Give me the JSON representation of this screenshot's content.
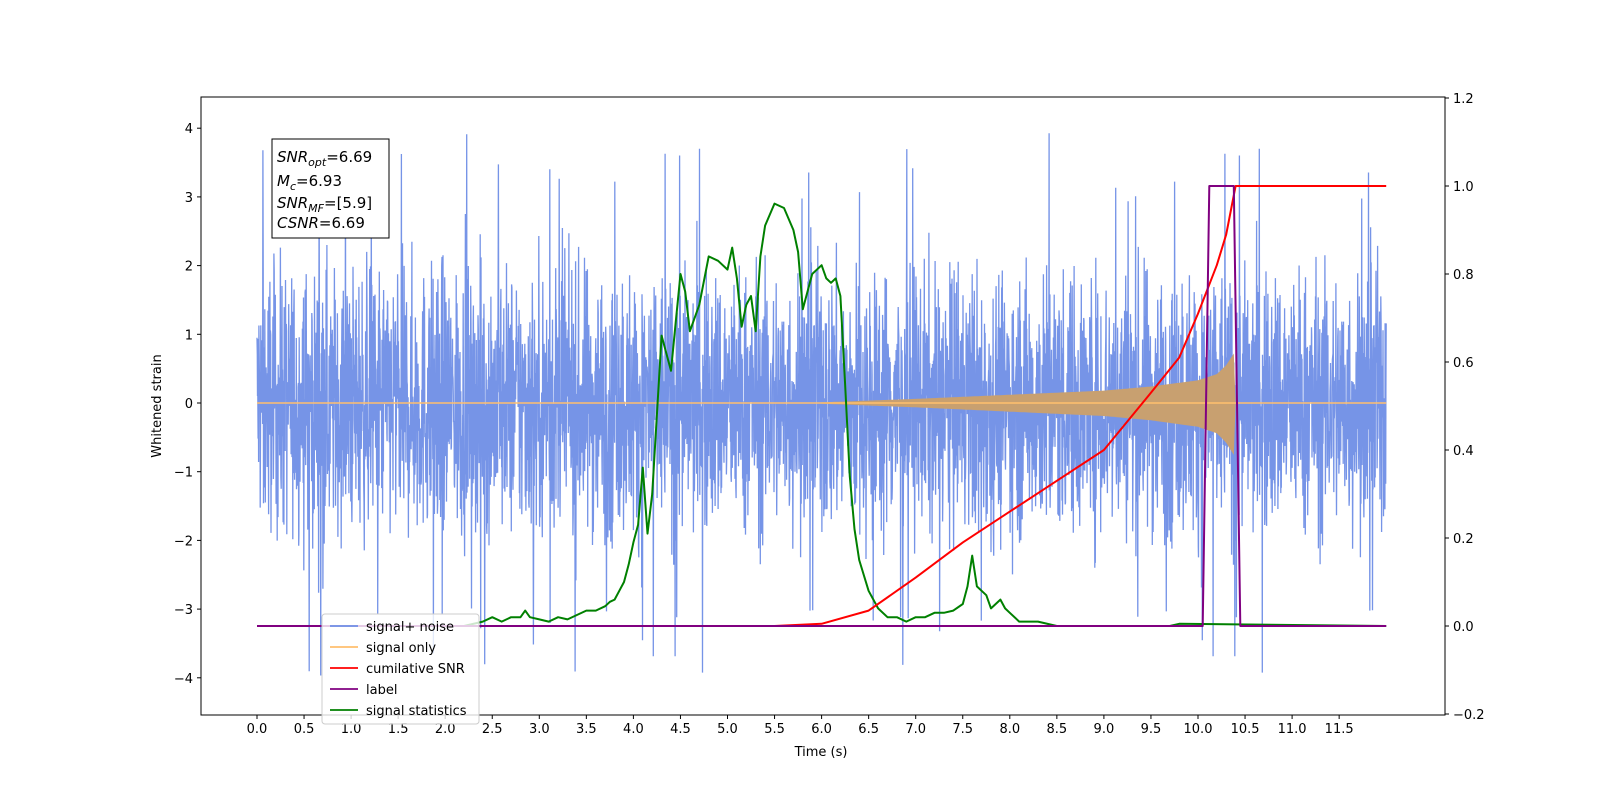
{
  "chart_data": {
    "type": "line",
    "xlabel": "Time (s)",
    "ylabel": "Whitened strain",
    "xlim": [
      -0.6,
      12.65
    ],
    "ylim": [
      -4.5,
      4.5
    ],
    "y2lim": [
      -0.2,
      1.2
    ],
    "grid": false,
    "legend_position": "lower-left",
    "x_ticks": [
      "0.0",
      "0.5",
      "1.0",
      "1.5",
      "2.0",
      "2.5",
      "3.0",
      "3.5",
      "4.0",
      "4.5",
      "5.0",
      "5.5",
      "6.0",
      "6.5",
      "7.0",
      "7.5",
      "8.0",
      "8.5",
      "9.0",
      "9.5",
      "10.0",
      "10.5",
      "11.0",
      "11.5"
    ],
    "y_ticks": [
      "4",
      "3",
      "2",
      "1",
      "0",
      "−1",
      "−2",
      "−3",
      "−4"
    ],
    "y2_ticks": [
      "1.2",
      "1.0",
      "0.8",
      "0.6",
      "0.4",
      "0.2",
      "0.0",
      "−0.2"
    ],
    "annotation": {
      "lines": [
        {
          "base": "SNR",
          "sub": "opt",
          "value": "=6.69"
        },
        {
          "base": "M",
          "sub": "c",
          "value": "=6.93"
        },
        {
          "base": "SNR",
          "sub": "MF",
          "value": "=[5.9]"
        },
        {
          "base": "CSNR",
          "sub": "",
          "value": "=6.69"
        }
      ]
    },
    "legend": [
      {
        "label": "signal+ noise",
        "color": "#6f8ee6"
      },
      {
        "label": "signal only",
        "color": "#ffbf6e"
      },
      {
        "label": "cumilative SNR",
        "color": "#ff0000"
      },
      {
        "label": "label",
        "color": "#800080"
      },
      {
        "label": "signal statistics",
        "color": "#008000"
      }
    ],
    "series": [
      {
        "name": "signal+ noise",
        "axis": "left",
        "color": "#6f8ee6",
        "time_range": [
          0.0,
          12.0
        ],
        "approx_amplitude": 1.6,
        "approx_peak": 4.0
      },
      {
        "name": "signal only",
        "axis": "left",
        "color": "#c8a070",
        "t_merger": 10.4,
        "envelope": {
          "t": [
            6.0,
            7.0,
            8.0,
            9.0,
            9.5,
            10.0,
            10.2,
            10.3,
            10.38
          ],
          "amp": [
            0.01,
            0.06,
            0.12,
            0.18,
            0.24,
            0.33,
            0.42,
            0.55,
            0.72
          ]
        }
      },
      {
        "name": "cumilative SNR",
        "axis": "right",
        "color": "#ff0000",
        "x": [
          0,
          5.5,
          6.0,
          6.5,
          7.0,
          7.5,
          8.0,
          8.5,
          9.0,
          9.5,
          9.8,
          10.0,
          10.2,
          10.3,
          10.4,
          12.0
        ],
        "y": [
          0,
          0.0,
          0.005,
          0.035,
          0.11,
          0.19,
          0.26,
          0.33,
          0.4,
          0.53,
          0.61,
          0.71,
          0.82,
          0.89,
          1.0,
          1.0
        ]
      },
      {
        "name": "label",
        "axis": "right",
        "color": "#800080",
        "x": [
          0,
          10.05,
          10.12,
          10.38,
          10.45,
          12.0
        ],
        "y": [
          0,
          0,
          1,
          1,
          0,
          0
        ]
      },
      {
        "name": "signal statistics",
        "axis": "right",
        "color": "#008000",
        "x": [
          0,
          2.2,
          2.4,
          2.5,
          2.6,
          2.7,
          2.8,
          2.85,
          2.9,
          3.0,
          3.1,
          3.2,
          3.3,
          3.4,
          3.5,
          3.6,
          3.7,
          3.75,
          3.8,
          3.85,
          3.9,
          3.95,
          4.0,
          4.05,
          4.1,
          4.15,
          4.2,
          4.3,
          4.4,
          4.45,
          4.5,
          4.55,
          4.6,
          4.7,
          4.8,
          4.9,
          5.0,
          5.05,
          5.1,
          5.15,
          5.2,
          5.25,
          5.3,
          5.35,
          5.4,
          5.5,
          5.6,
          5.7,
          5.75,
          5.8,
          5.9,
          6.0,
          6.05,
          6.1,
          6.15,
          6.2,
          6.25,
          6.3,
          6.35,
          6.4,
          6.5,
          6.6,
          6.7,
          6.8,
          6.9,
          7.0,
          7.1,
          7.2,
          7.3,
          7.4,
          7.5,
          7.55,
          7.6,
          7.65,
          7.7,
          7.75,
          7.8,
          7.85,
          7.9,
          7.95,
          8.0,
          8.1,
          8.2,
          8.3,
          8.5,
          9.0,
          9.7,
          9.8,
          12.0
        ],
        "y": [
          0,
          0,
          0.01,
          0.02,
          0.01,
          0.02,
          0.02,
          0.035,
          0.02,
          0.015,
          0.01,
          0.02,
          0.015,
          0.025,
          0.035,
          0.035,
          0.045,
          0.055,
          0.06,
          0.08,
          0.1,
          0.14,
          0.19,
          0.23,
          0.36,
          0.21,
          0.3,
          0.66,
          0.58,
          0.69,
          0.8,
          0.76,
          0.67,
          0.73,
          0.84,
          0.83,
          0.81,
          0.86,
          0.79,
          0.68,
          0.73,
          0.75,
          0.67,
          0.84,
          0.91,
          0.96,
          0.95,
          0.9,
          0.85,
          0.72,
          0.8,
          0.82,
          0.79,
          0.78,
          0.79,
          0.75,
          0.55,
          0.34,
          0.22,
          0.15,
          0.08,
          0.04,
          0.02,
          0.02,
          0.01,
          0.02,
          0.02,
          0.03,
          0.03,
          0.035,
          0.05,
          0.09,
          0.16,
          0.09,
          0.08,
          0.07,
          0.04,
          0.05,
          0.06,
          0.04,
          0.03,
          0.01,
          0.01,
          0.01,
          0.0,
          0.0,
          0.0,
          0.005,
          0.0
        ]
      }
    ]
  }
}
